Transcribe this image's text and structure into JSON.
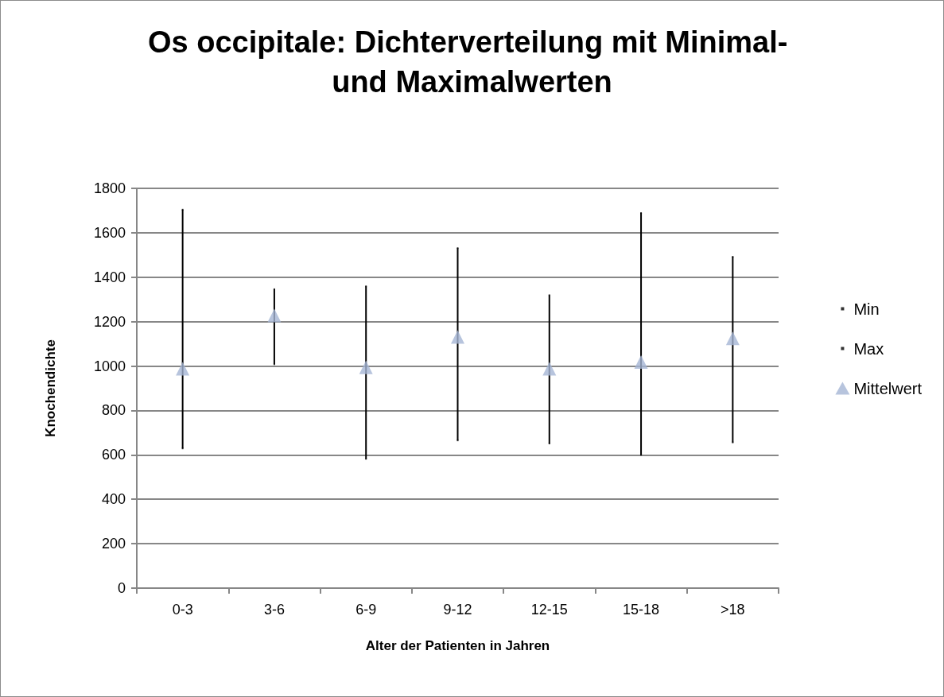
{
  "chart_data": {
    "type": "scatter",
    "title": "Os occipitale: Dichterverteilung mit Minimal- und Maximalwerten",
    "xlabel": "Alter der Patienten in Jahren",
    "ylabel": "Knochendichte",
    "categories": [
      "0-3",
      "3-6",
      "6-9",
      "9-12",
      "12-15",
      "15-18",
      ">18"
    ],
    "series": [
      {
        "name": "Min",
        "color": "#000000",
        "marker": "square",
        "values": [
          629,
          1008,
          582,
          665,
          651,
          600,
          656
        ]
      },
      {
        "name": "Max",
        "color": "#000000",
        "marker": "square",
        "values": [
          1704,
          1346,
          1359,
          1531,
          1319,
          1689,
          1492
        ]
      },
      {
        "name": "Mittelwert",
        "color": "#a5b5d4",
        "marker": "triangle",
        "values": [
          988,
          1227,
          994,
          1131,
          988,
          1018,
          1125
        ]
      }
    ],
    "ylim": [
      0,
      1800
    ],
    "yticks": [
      0,
      200,
      400,
      600,
      800,
      1000,
      1200,
      1400,
      1600,
      1800
    ],
    "grid": "y",
    "legend": "right"
  }
}
